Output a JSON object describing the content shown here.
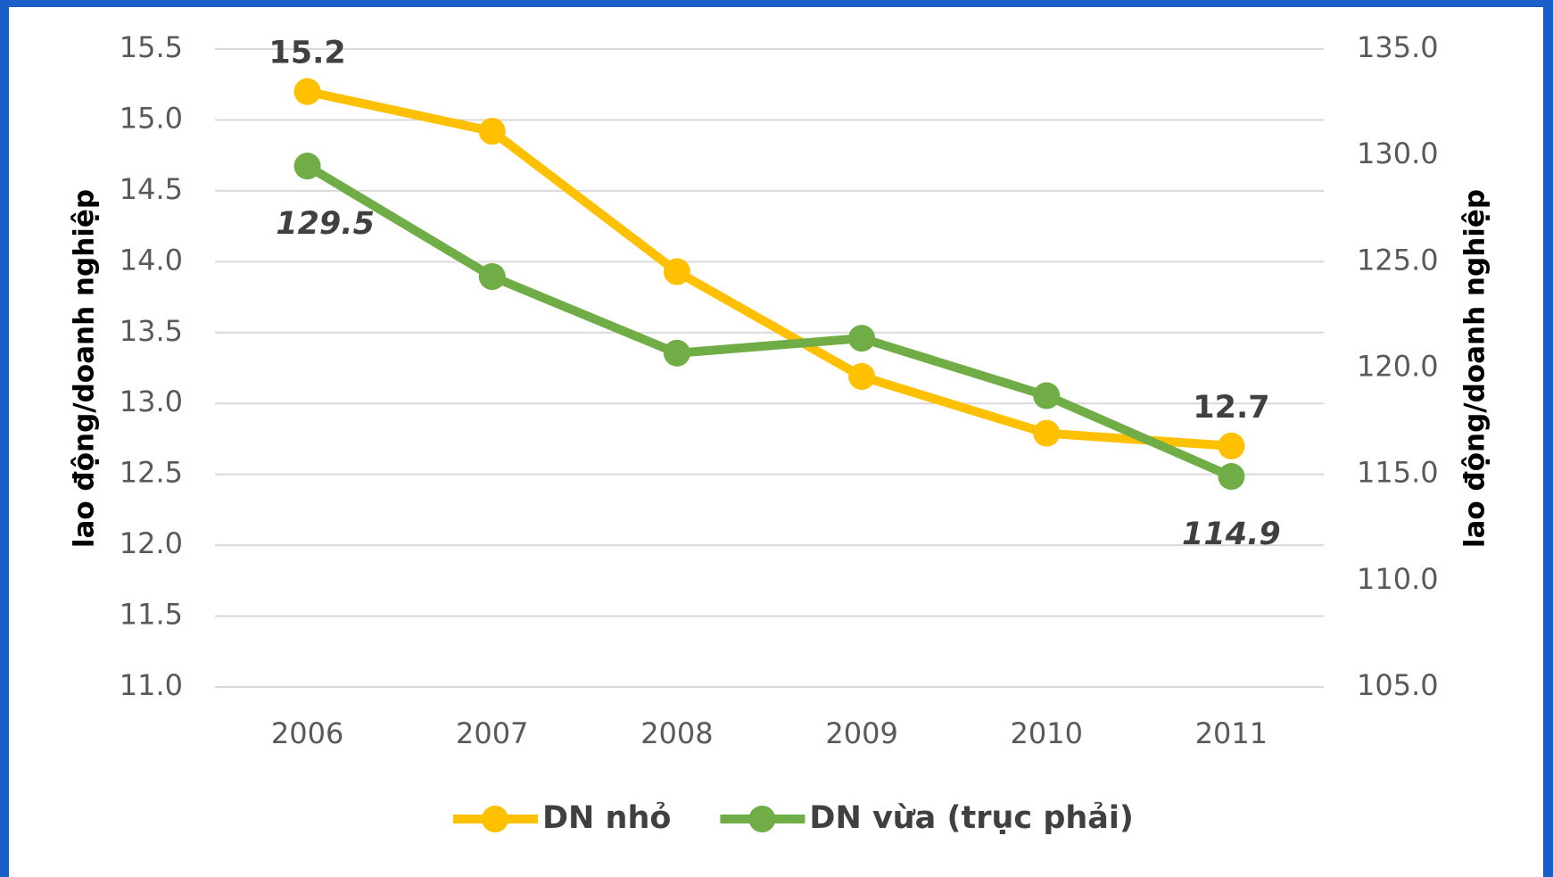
{
  "chart_data": {
    "type": "line",
    "categories": [
      "2006",
      "2007",
      "2008",
      "2009",
      "2010",
      "2011"
    ],
    "series": [
      {
        "name": "DN nhỏ",
        "color": "#ffc000",
        "values": [
          15.2,
          14.92,
          13.93,
          13.19,
          12.79,
          12.7
        ],
        "value_labels": [
          "15.2",
          null,
          null,
          null,
          null,
          "12.7"
        ]
      },
      {
        "name": "DN vừa (trục phải)",
        "color": "#70ad47",
        "axis": "y2",
        "values": [
          129.5,
          124.3,
          120.7,
          121.4,
          118.7,
          114.9
        ],
        "value_labels": [
          "129.5",
          null,
          null,
          null,
          null,
          "114.9"
        ]
      }
    ],
    "ylabel": "lao động/doanh nghiệp",
    "y2label": "lao động/doanh nghiệp",
    "ylim": [
      11,
      15.5
    ],
    "yticks": [
      {
        "value": 11,
        "label": "11.0"
      },
      {
        "value": 11.5,
        "label": "11.5"
      },
      {
        "value": 12,
        "label": "12.0"
      },
      {
        "value": 12.5,
        "label": "12.5"
      },
      {
        "value": 13,
        "label": "13.0"
      },
      {
        "value": 13.5,
        "label": "13.5"
      },
      {
        "value": 14,
        "label": "14.0"
      },
      {
        "value": 14.5,
        "label": "14.5"
      },
      {
        "value": 15,
        "label": "15.0"
      },
      {
        "value": 15.5,
        "label": "15.5"
      }
    ],
    "y2lim": [
      105,
      135
    ],
    "y2ticks": [
      {
        "value": 105,
        "label": "105.0"
      },
      {
        "value": 110,
        "label": "110.0"
      },
      {
        "value": 115,
        "label": "115.0"
      },
      {
        "value": 120,
        "label": "120.0"
      },
      {
        "value": 125,
        "label": "125.0"
      },
      {
        "value": 130,
        "label": "130.0"
      },
      {
        "value": 135,
        "label": "135.0"
      }
    ],
    "grid": true,
    "legend": "bottom"
  }
}
